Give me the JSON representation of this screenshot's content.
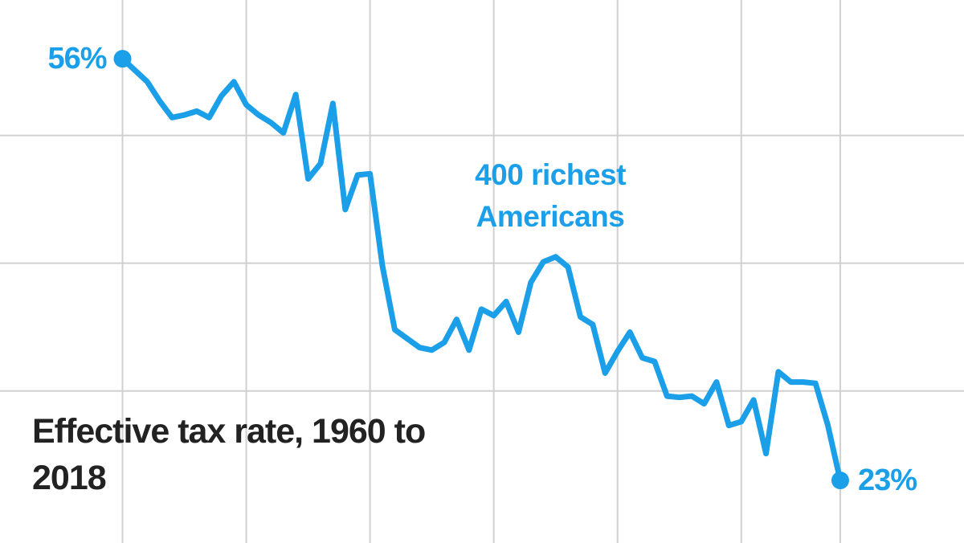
{
  "chart_data": {
    "type": "line",
    "title": "Effective tax rate, 1960 to 2018",
    "x": [
      1960,
      1961,
      1962,
      1963,
      1964,
      1965,
      1966,
      1967,
      1968,
      1969,
      1970,
      1971,
      1972,
      1973,
      1974,
      1975,
      1976,
      1977,
      1978,
      1979,
      1980,
      1981,
      1982,
      1983,
      1984,
      1985,
      1986,
      1987,
      1988,
      1989,
      1990,
      1991,
      1992,
      1993,
      1994,
      1995,
      1996,
      1997,
      1998,
      1999,
      2000,
      2001,
      2002,
      2003,
      2004,
      2005,
      2006,
      2007,
      2008,
      2009,
      2010,
      2011,
      2012,
      2013,
      2014,
      2015,
      2016,
      2017,
      2018
    ],
    "series": [
      {
        "name": "400 richest Americans",
        "color": "#1a9fe8",
        "values": [
          56,
          55.1,
          54.2,
          52.7,
          51.4,
          51.6,
          51.9,
          51.4,
          53.1,
          54.2,
          52.4,
          51.6,
          51.0,
          50.2,
          53.2,
          46.6,
          47.8,
          52.5,
          44.2,
          46.9,
          47.0,
          39.8,
          34.8,
          34.1,
          33.4,
          33.2,
          33.8,
          35.6,
          33.2,
          36.4,
          35.9,
          37.0,
          34.6,
          38.5,
          40.1,
          40.5,
          39.7,
          35.8,
          35.2,
          31.4,
          33.1,
          34.6,
          32.6,
          32.3,
          29.6,
          29.5,
          29.6,
          29.0,
          30.7,
          27.3,
          27.6,
          29.3,
          25.1,
          31.5,
          30.7,
          30.7,
          30.6,
          27.3,
          23
        ],
        "value_labels": [
          "56%",
          null,
          null,
          null,
          null,
          null,
          null,
          null,
          null,
          null,
          null,
          null,
          null,
          null,
          null,
          null,
          null,
          null,
          null,
          null,
          null,
          null,
          null,
          null,
          null,
          null,
          null,
          null,
          null,
          null,
          null,
          null,
          null,
          null,
          null,
          null,
          null,
          null,
          null,
          null,
          null,
          null,
          null,
          null,
          null,
          null,
          null,
          null,
          null,
          null,
          null,
          null,
          null,
          null,
          null,
          null,
          null,
          null,
          "23%"
        ]
      }
    ],
    "xlim": [
      1950.1,
      2028
    ],
    "xticks": [
      1960,
      1970,
      1980,
      1990,
      2000,
      2010,
      2018
    ],
    "ylim": [
      18.1,
      60.6
    ],
    "yticks": [
      30,
      40,
      50
    ],
    "grid": true
  }
}
